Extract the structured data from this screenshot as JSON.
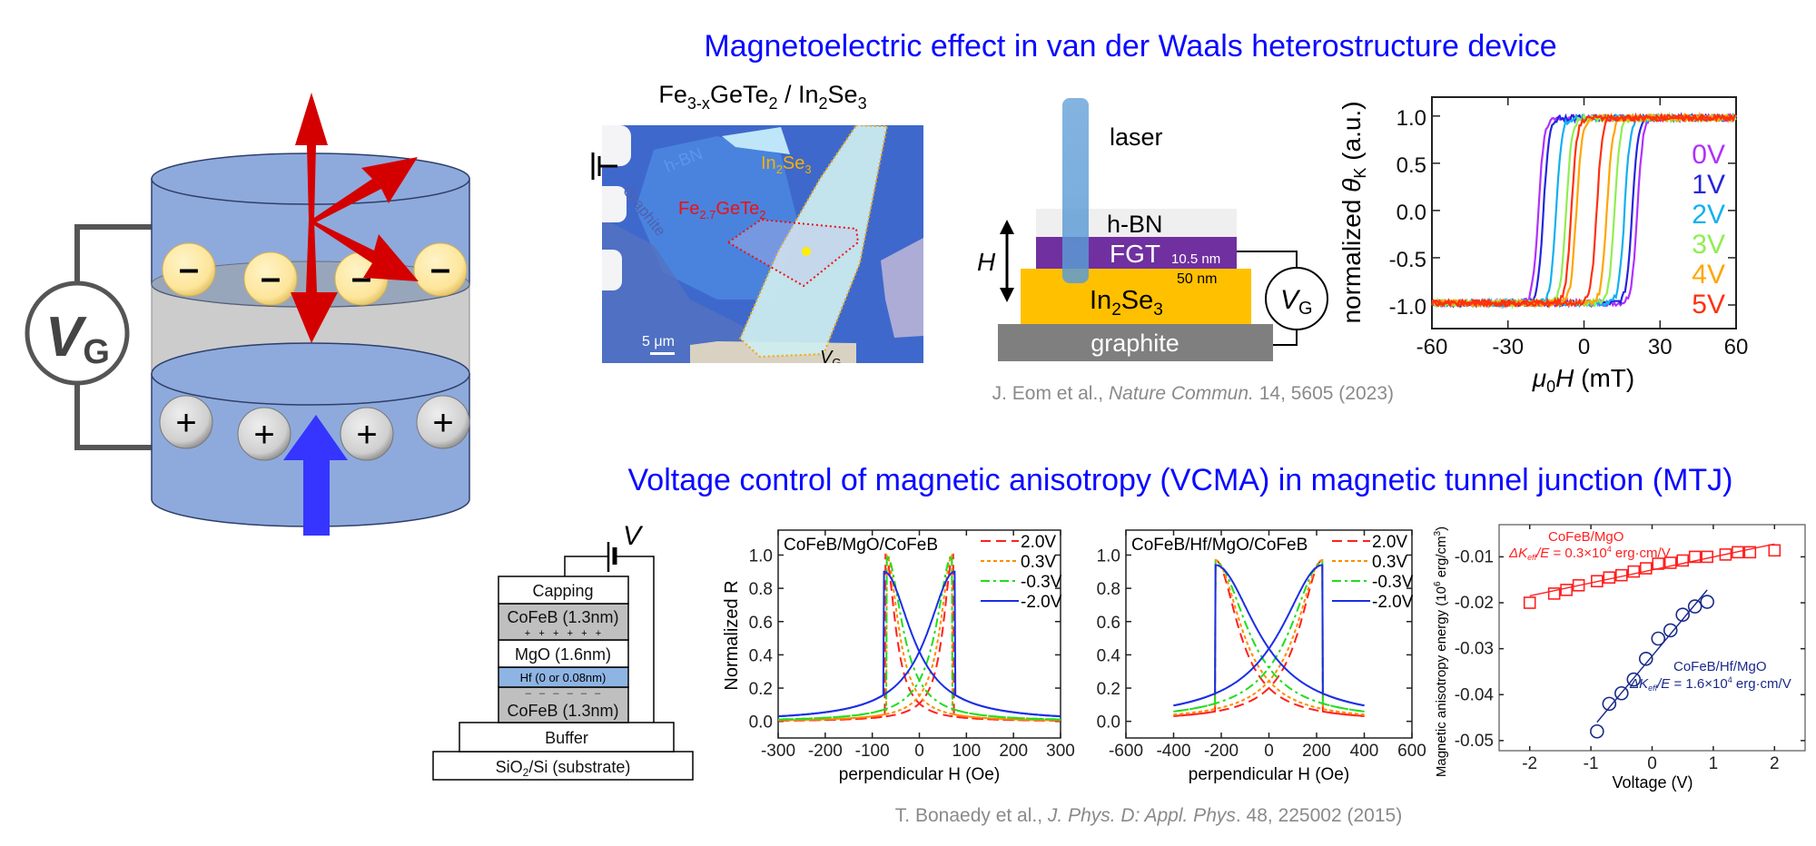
{
  "titles": {
    "top": "Magnetoelectric effect in van der Waals heterostructure device",
    "bottom": "Voltage control of magnetic anisotropy (VCMA) in magnetic tunnel junction (MTJ)"
  },
  "citations": {
    "top": {
      "authors": "J. Eom et al., ",
      "journal": "Nature Commun.",
      "rest": " 14, 5605 (2023)"
    },
    "bottom": {
      "authors": "T. Bonaedy et al., ",
      "journal": "J. Phys. D: Appl. Phys",
      "rest": ". 48, 225002 (2015)"
    }
  },
  "cylinder": {
    "gate_label": "V",
    "gate_sub": "G",
    "minus_symbol": "–",
    "plus_symbol": "+",
    "colors": {
      "layer": "#8eaadc",
      "dielectric": "#cccccc",
      "electron": "#fde59a",
      "hole": "#cfcfcf",
      "spin_arrow": "#d40000",
      "field_arrow": "#3333ff"
    }
  },
  "micrograph": {
    "title": {
      "a": "Fe",
      "a_sub": "3-x",
      "b": "GeTe",
      "b_sub": "2",
      "c": " / In",
      "c_sub": "2",
      "d": "Se",
      "d_sub": "3"
    },
    "labels": {
      "hbn": "h-BN",
      "graphite": "Graphite",
      "in2se3": {
        "a": "In",
        "a_sub": "2",
        "b": "Se",
        "b_sub": "3"
      },
      "fgt": {
        "a": "Fe",
        "a_sub": "2.7",
        "b": "GeTe",
        "b_sub": "2"
      },
      "scale": "5 μm",
      "gate": "V",
      "gate_sub": "G"
    }
  },
  "device": {
    "laser": "laser",
    "field": "H",
    "hbn": "h-BN",
    "fgt": "FGT",
    "fgt_thickness": "10.5 nm",
    "in2se3_thickness": "50 nm",
    "in2se3": {
      "a": "In",
      "a_sub": "2",
      "b": "Se",
      "b_sub": "3"
    },
    "graphite": "graphite",
    "gate": "V",
    "gate_sub": "G",
    "colors": {
      "hbn": "#efefef",
      "fgt": "#7030a0",
      "in2se3": "#ffc000",
      "graphite": "#7f7f7f",
      "laser": "#5b9bd5"
    }
  },
  "mtj": {
    "voltage": "V",
    "layers": [
      "Capping",
      "CoFeB (1.3nm)",
      "MgO (1.6nm)",
      "Hf (0 or 0.08nm)",
      "CoFeB (1.3nm)",
      "Buffer"
    ],
    "plus_row": "+   +   +   +   +   +",
    "minus_row": "–   –   –   –   –   –",
    "substrate": {
      "a": "SiO",
      "a_sub": "2",
      "b": "/Si (substrate)"
    }
  },
  "chart_data": [
    {
      "type": "line",
      "xlabel": {
        "a": "μ",
        "a_sub": "0",
        "b": "H",
        "c": " (mT)"
      },
      "ylabel": {
        "a": "normalized ",
        "b": "θ",
        "b_sub": "K",
        "c": " (a.u.)"
      },
      "xlim": [
        -60,
        60
      ],
      "ylim": [
        -1.25,
        1.2
      ],
      "xticks": [
        -60,
        -30,
        0,
        30,
        60
      ],
      "yticks": [
        -1.0,
        -0.5,
        0.0,
        0.5,
        1.0
      ],
      "xtick_labels": [
        "-60",
        "-30",
        "0",
        "30",
        "60"
      ],
      "ytick_labels": [
        "-1.0",
        "-0.5",
        "0.0",
        "0.5",
        "1.0"
      ],
      "legend_position": "right",
      "series": [
        {
          "name": "0V",
          "color": "#b030ff",
          "switching_fields_mT": [
            -18,
            21
          ]
        },
        {
          "name": "1V",
          "color": "#2424e0",
          "switching_fields_mT": [
            -16,
            19
          ]
        },
        {
          "name": "2V",
          "color": "#12b0f0",
          "switching_fields_mT": [
            -11,
            16
          ]
        },
        {
          "name": "3V",
          "color": "#90ee50",
          "switching_fields_mT": [
            -7,
            12
          ]
        },
        {
          "name": "4V",
          "color": "#ffa500",
          "switching_fields_mT": [
            -3,
            9
          ]
        },
        {
          "name": "5V",
          "color": "#ff3010",
          "switching_fields_mT": [
            -5,
            5
          ]
        }
      ]
    },
    {
      "type": "line",
      "title": "CoFeB/MgO/CoFeB",
      "xlabel": "perpendicular H (Oe)",
      "ylabel": "Normalized R",
      "xlim": [
        -300,
        300
      ],
      "ylim": [
        -0.1,
        1.15
      ],
      "xticks": [
        -300,
        -200,
        -100,
        0,
        100,
        200,
        300
      ],
      "yticks": [
        0,
        0.2,
        0.4,
        0.6,
        0.8,
        1.0
      ],
      "xtick_labels": [
        "-300",
        "-200",
        "-100",
        "0",
        "100",
        "200",
        "300"
      ],
      "ytick_labels": [
        "0.0",
        "0.2",
        "0.4",
        "0.6",
        "0.8",
        "1.0"
      ],
      "legend_position": "top-right",
      "series": [
        {
          "name": "2.0V",
          "color": "#ff2020",
          "style": "dashed",
          "switching_field_Oe": 72,
          "peak": 1.0
        },
        {
          "name": "0.3V",
          "color": "#ff8c00",
          "style": "dotted",
          "switching_field_Oe": 70,
          "peak": 1.0
        },
        {
          "name": "-0.3V",
          "color": "#20dd20",
          "style": "dashdot",
          "switching_field_Oe": 70,
          "peak": 1.0
        },
        {
          "name": "-2.0V",
          "color": "#1a2ee6",
          "style": "solid",
          "switching_field_Oe": 75,
          "peak": 0.9
        }
      ]
    },
    {
      "type": "line",
      "title": "CoFeB/Hf/MgO/CoFeB",
      "xlabel": "perpendicular H (Oe)",
      "ylabel": "",
      "xlim": [
        -600,
        600
      ],
      "ylim": [
        -0.1,
        1.15
      ],
      "xticks": [
        -600,
        -400,
        -200,
        0,
        200,
        400,
        600
      ],
      "yticks": [
        0,
        0.2,
        0.4,
        0.6,
        0.8,
        1.0
      ],
      "xtick_labels": [
        "-600",
        "-400",
        "-200",
        "0",
        "200",
        "400",
        "600"
      ],
      "ytick_labels": [
        "0.0",
        "0.2",
        "0.4",
        "0.6",
        "0.8",
        "1.0"
      ],
      "legend_position": "top-right",
      "series": [
        {
          "name": "2.0V",
          "color": "#ff2020",
          "style": "dashed",
          "switching_field_Oe": 225,
          "peak": 0.97
        },
        {
          "name": "0.3V",
          "color": "#ff8c00",
          "style": "dotted",
          "switching_field_Oe": 225,
          "peak": 0.97
        },
        {
          "name": "-0.3V",
          "color": "#20dd20",
          "style": "dashdot",
          "switching_field_Oe": 225,
          "peak": 0.96
        },
        {
          "name": "-2.0V",
          "color": "#1a2ee6",
          "style": "solid",
          "switching_field_Oe": 225,
          "peak": 0.94
        }
      ]
    },
    {
      "type": "scatter",
      "xlabel": "Voltage (V)",
      "ylabel": {
        "a": "Magnetic anisotropy energy (10",
        "sup": "6",
        "b": " erg/cm",
        "sup2": "3",
        "c": ")"
      },
      "xlim": [
        -2.5,
        2.5
      ],
      "ylim": [
        -0.0522,
        -0.003
      ],
      "xticks": [
        -2,
        -1,
        0,
        1,
        2
      ],
      "yticks": [
        -0.05,
        -0.04,
        -0.03,
        -0.02,
        -0.01
      ],
      "xtick_labels": [
        "-2",
        "-1",
        "0",
        "1",
        "2"
      ],
      "ytick_labels": [
        "-0.05",
        "-0.04",
        "-0.03",
        "-0.02",
        "-0.01"
      ],
      "series": [
        {
          "name": "CoFeB/MgO",
          "color": "#ff2020",
          "marker": "square",
          "annotation": {
            "a": "ΔK",
            "a_sub": "eff",
            "b": "/E",
            "c": " = 0.3×10",
            "sup": "4",
            "d": " erg·cm/V"
          },
          "x": [
            -2,
            -1.6,
            -1.4,
            -1.2,
            -0.9,
            -0.7,
            -0.5,
            -0.3,
            -0.1,
            0.1,
            0.3,
            0.5,
            0.7,
            0.9,
            1.2,
            1.4,
            1.6,
            2.0
          ],
          "y": [
            -0.02,
            -0.018,
            -0.0172,
            -0.0162,
            -0.0153,
            -0.0145,
            -0.014,
            -0.0132,
            -0.0125,
            -0.0115,
            -0.0113,
            -0.0108,
            -0.01,
            -0.01,
            -0.0095,
            -0.009,
            -0.009,
            -0.0086
          ],
          "fit": {
            "x": [
              -2,
              2
            ],
            "y": [
              -0.0185,
              -0.0072
            ]
          }
        },
        {
          "name": "CoFeB/Hf/MgO",
          "color": "#1a2a8a",
          "marker": "circle",
          "annotation": {
            "a": "ΔK",
            "a_sub": "eff",
            "b": "/E",
            "c": " = 1.6×10",
            "sup": "4",
            "d": " erg·cm/V"
          },
          "x": [
            -0.9,
            -0.7,
            -0.5,
            -0.3,
            -0.1,
            0.1,
            0.3,
            0.5,
            0.7,
            0.9
          ],
          "y": [
            -0.048,
            -0.042,
            -0.0397,
            -0.0367,
            -0.0322,
            -0.0278,
            -0.026,
            -0.0226,
            -0.0208,
            -0.0198
          ],
          "fit": {
            "x": [
              -0.9,
              0.9
            ],
            "y": [
              -0.046,
              -0.0172
            ]
          }
        }
      ]
    }
  ]
}
